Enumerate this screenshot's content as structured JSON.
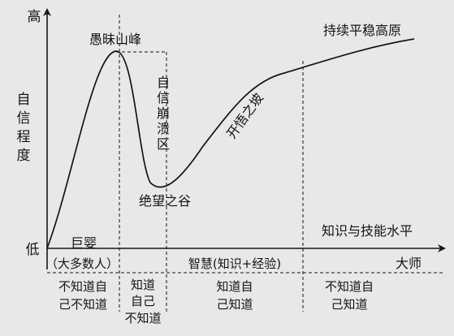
{
  "axes": {
    "y_top_label": "高",
    "y_bottom_label": "低",
    "y_title_chars": [
      "自",
      "信",
      "程",
      "度"
    ],
    "x_title": "知识与技能水平"
  },
  "curve_labels": {
    "peak": "愚昧山峰",
    "collapse_chars": [
      "自",
      "信",
      "崩",
      "溃",
      "区"
    ],
    "valley": "绝望之谷",
    "slope": "开悟之坡",
    "plateau": "持续平稳高原"
  },
  "stage_labels": {
    "giant_baby": "巨婴",
    "majority": "（大多数人）",
    "wisdom": "智慧(知识+经验)",
    "master": "大师"
  },
  "bottom_row": [
    {
      "lines": [
        "不知道自",
        "己不知道"
      ]
    },
    {
      "lines": [
        "知道",
        "自己",
        "不知道"
      ]
    },
    {
      "lines": [
        "知道自",
        "己知道"
      ]
    },
    {
      "lines": [
        "不知道自",
        "己知道"
      ]
    }
  ],
  "colors": {
    "background": "#e8e8e6",
    "ink": "#151515"
  }
}
